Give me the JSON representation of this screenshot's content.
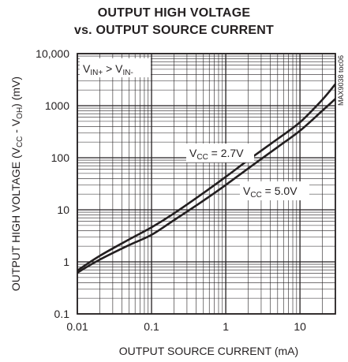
{
  "chart_data": {
    "type": "line",
    "title": "OUTPUT HIGH VOLTAGE",
    "subtitle": "vs. OUTPUT SOURCE CURRENT",
    "xlabel": "OUTPUT SOURCE CURRENT (mA)",
    "ylabel": {
      "pre": "OUTPUT HIGH VOLTAGE (V",
      "sub1": "CC",
      "mid": " - V",
      "sub2": "OH",
      "post": ") (mV)"
    },
    "x_scale": "log",
    "y_scale": "log",
    "xlim": [
      0.01,
      30
    ],
    "ylim": [
      0.1,
      10000
    ],
    "grid": true,
    "x_ticks": [
      "0.01",
      "0.1",
      "1",
      "10"
    ],
    "y_ticks": [
      "0.1",
      "1",
      "10",
      "100",
      "1000",
      "10,000"
    ],
    "condition": {
      "text1": "V",
      "sub1": "IN+",
      "text2": " > V",
      "sub2": "IN-"
    },
    "part_code": "MAX9038 toc06",
    "series": [
      {
        "name": "VCC = 2.7V",
        "label": {
          "pre": "V",
          "sub": "CC",
          "post": " = 2.7V"
        },
        "x": [
          0.01,
          0.02,
          0.05,
          0.1,
          0.2,
          0.5,
          1,
          2,
          5,
          10,
          20,
          30
        ],
        "y": [
          0.68,
          1.3,
          2.7,
          4.6,
          8.5,
          21,
          43,
          90,
          230,
          480,
          1300,
          2600
        ]
      },
      {
        "name": "VCC = 5.0V",
        "label": {
          "pre": "V",
          "sub": "CC",
          "post": " = 5.0V"
        },
        "x": [
          0.01,
          0.02,
          0.05,
          0.1,
          0.2,
          0.5,
          1,
          2,
          5,
          10,
          20,
          30
        ],
        "y": [
          0.62,
          1.1,
          2.1,
          3.3,
          6.3,
          15,
          30,
          62,
          160,
          330,
          800,
          1350
        ]
      }
    ]
  },
  "colors": {
    "ink": "#231f20",
    "background": "#ffffff"
  }
}
